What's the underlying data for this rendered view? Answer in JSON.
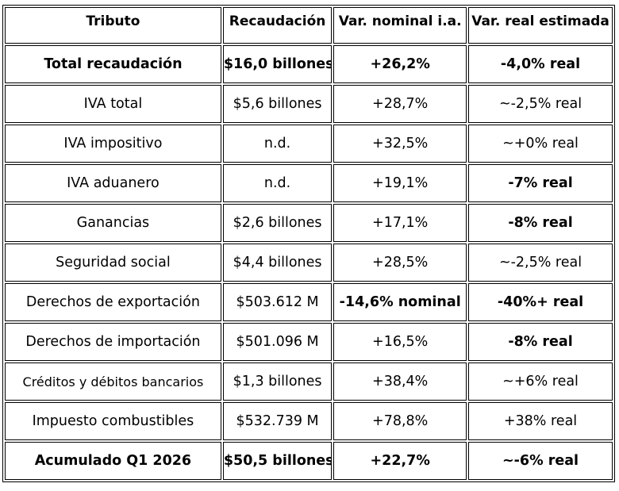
{
  "table": {
    "headers": [
      "Tributo",
      "Recaudación",
      "Var. nominal i.a.",
      "Var. real estimada"
    ],
    "rows": [
      {
        "tributo": "Total recaudación",
        "recaudacion": "$16,0 billones",
        "var_nominal": "+26,2%",
        "var_real": "-4,0% real"
      },
      {
        "tributo": "IVA total",
        "recaudacion": "$5,6 billones",
        "var_nominal": "+28,7%",
        "var_real": "~-2,5% real"
      },
      {
        "tributo": "IVA impositivo",
        "recaudacion": "n.d.",
        "var_nominal": "+32,5%",
        "var_real": "~+0% real"
      },
      {
        "tributo": "IVA aduanero",
        "recaudacion": "n.d.",
        "var_nominal": "+19,1%",
        "var_real": "-7% real"
      },
      {
        "tributo": "Ganancias",
        "recaudacion": "$2,6 billones",
        "var_nominal": "+17,1%",
        "var_real": "-8% real"
      },
      {
        "tributo": "Seguridad social",
        "recaudacion": "$4,4 billones",
        "var_nominal": "+28,5%",
        "var_real": "~-2,5% real"
      },
      {
        "tributo": "Derechos de exportación",
        "recaudacion": "$503.612 M",
        "var_nominal": "-14,6% nominal",
        "var_real": "-40%+ real"
      },
      {
        "tributo": "Derechos de importación",
        "recaudacion": "$501.096 M",
        "var_nominal": "+16,5%",
        "var_real": "-8% real"
      },
      {
        "tributo": "Créditos y débitos bancarios",
        "recaudacion": "$1,3 billones",
        "var_nominal": "+38,4%",
        "var_real": "~+6% real"
      },
      {
        "tributo": "Impuesto combustibles",
        "recaudacion": "$532.739 M",
        "var_nominal": "+78,8%",
        "var_real": "+38% real"
      },
      {
        "tributo": "Acumulado Q1 2026",
        "recaudacion": "$50,5 billones",
        "var_nominal": "+22,7%",
        "var_real": "~-6% real"
      }
    ]
  }
}
